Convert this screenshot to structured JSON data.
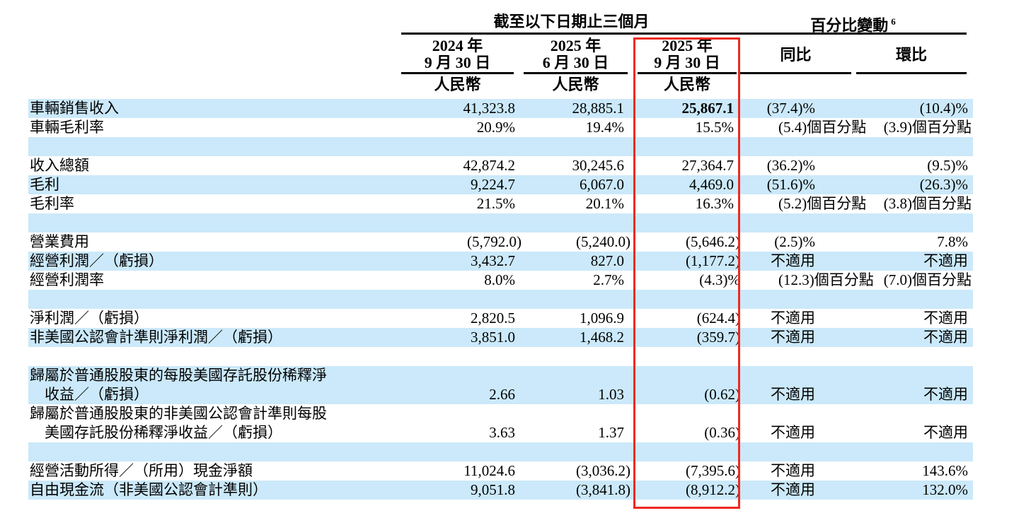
{
  "header": {
    "period_group": "截至以下日期止三個月",
    "pct_group": "百分比變動",
    "pct_group_note": "6",
    "columns": [
      {
        "line1": "2024 年",
        "line2": "9 月 30 日",
        "currency": "人民幣"
      },
      {
        "line1": "2025 年",
        "line2": "6 月 30 日",
        "currency": "人民幣"
      },
      {
        "line1": "2025 年",
        "line2": "9 月 30 日",
        "currency": "人民幣"
      }
    ],
    "yoy": "同比",
    "qoq": "環比"
  },
  "rows": [
    {
      "label": "車輛銷售收入",
      "c1": "41,323.8",
      "c2": "28,885.1",
      "c3": "25,867.1",
      "c3_bold": true,
      "yoy": "(37.4)%",
      "qoq": "(10.4)%"
    },
    {
      "label": "車輛毛利率",
      "c1": "20.9%",
      "c2": "19.4%",
      "c3": "15.5%",
      "yoy": "(5.4)個百分點",
      "qoq": "(3.9)個百分點"
    },
    {
      "label": "",
      "c1": "",
      "c2": "",
      "c3": "",
      "yoy": "",
      "qoq": ""
    },
    {
      "label": "收入總額",
      "c1": "42,874.2",
      "c2": "30,245.6",
      "c3": "27,364.7",
      "yoy": "(36.2)%",
      "qoq": "(9.5)%"
    },
    {
      "label": "毛利",
      "c1": "9,224.7",
      "c2": "6,067.0",
      "c3": "4,469.0",
      "yoy": "(51.6)%",
      "qoq": "(26.3)%"
    },
    {
      "label": "毛利率",
      "c1": "21.5%",
      "c2": "20.1%",
      "c3": "16.3%",
      "yoy": "(5.2)個百分點",
      "qoq": "(3.8)個百分點"
    },
    {
      "label": "",
      "c1": "",
      "c2": "",
      "c3": "",
      "yoy": "",
      "qoq": ""
    },
    {
      "label": "營業費用",
      "c1": "(5,792.0)",
      "c2": "(5,240.0)",
      "c3": "(5,646.2)",
      "yoy": "(2.5)%",
      "qoq": "7.8%"
    },
    {
      "label": "經營利潤／（虧損）",
      "c1": "3,432.7",
      "c2": "827.0",
      "c3": "(1,177.2)",
      "yoy": "不適用",
      "qoq": "不適用"
    },
    {
      "label": "經營利潤率",
      "c1": "8.0%",
      "c2": "2.7%",
      "c3": "(4.3)%",
      "yoy": "(12.3)個百分點",
      "qoq": "(7.0)個百分點"
    },
    {
      "label": "",
      "c1": "",
      "c2": "",
      "c3": "",
      "yoy": "",
      "qoq": ""
    },
    {
      "label": "淨利潤／（虧損）",
      "c1": "2,820.5",
      "c2": "1,096.9",
      "c3": "(624.4)",
      "yoy": "不適用",
      "qoq": "不適用"
    },
    {
      "label": "非美國公認會計準則淨利潤／（虧損）",
      "c1": "3,851.0",
      "c2": "1,468.2",
      "c3": "(359.7)",
      "yoy": "不適用",
      "qoq": "不適用"
    },
    {
      "label": "",
      "c1": "",
      "c2": "",
      "c3": "",
      "yoy": "",
      "qoq": ""
    },
    {
      "label": "歸屬於普通股股東的每股美國存託股份稀釋淨\n　收益／（虧損）",
      "c1": "2.66",
      "c2": "1.03",
      "c3": "(0.62)",
      "yoy": "不適用",
      "qoq": "不適用"
    },
    {
      "label": "歸屬於普通股股東的非美國公認會計準則每股\n　美國存託股份稀釋淨收益／（虧損）",
      "c1": "3.63",
      "c2": "1.37",
      "c3": "(0.36)",
      "yoy": "不適用",
      "qoq": "不適用"
    },
    {
      "label": "",
      "c1": "",
      "c2": "",
      "c3": "",
      "yoy": "",
      "qoq": ""
    },
    {
      "label": "經營活動所得／（所用）現金淨額",
      "c1": "11,024.6",
      "c2": "(3,036.2)",
      "c3": "(7,395.6)",
      "yoy": "不適用",
      "qoq": "143.6%"
    },
    {
      "label": "自由現金流（非美國公認會計準則）",
      "c1": "9,051.8",
      "c2": "(3,841.8)",
      "c3": "(8,912.2)",
      "yoy": "不適用",
      "qoq": "132.0%"
    }
  ],
  "colors": {
    "row_highlight": "#cbe9fa",
    "highlight_box": "#ee2a1e",
    "rule": "#000000",
    "text": "#000000"
  }
}
